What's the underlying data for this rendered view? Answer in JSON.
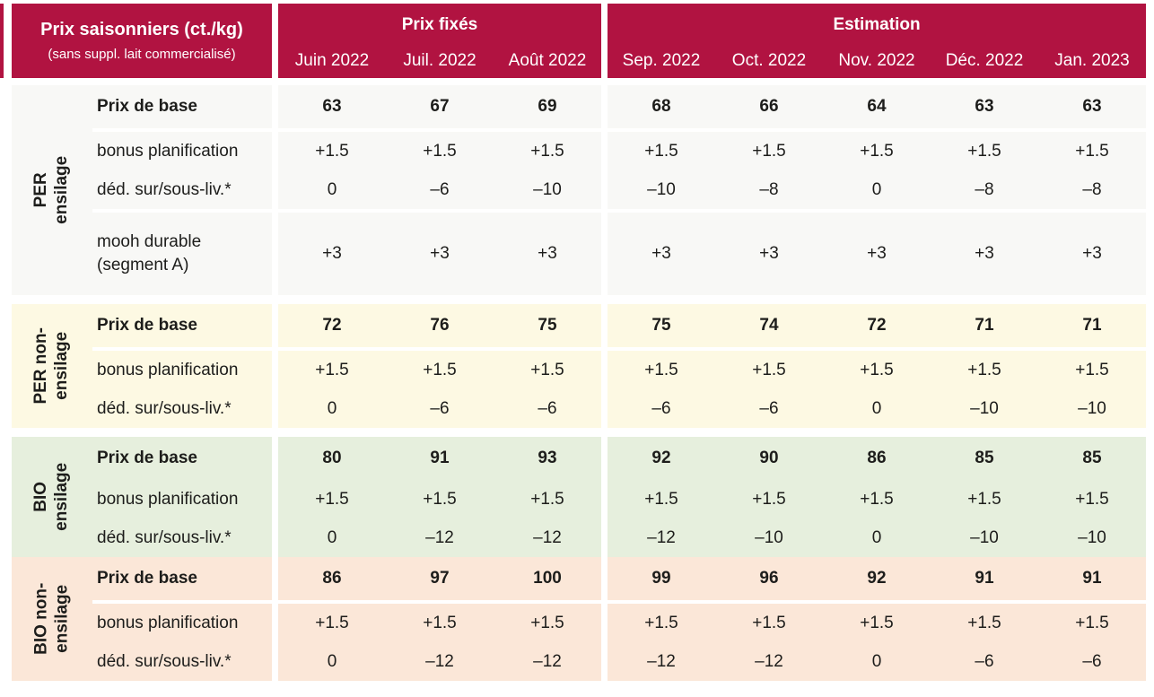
{
  "table": {
    "title": "Prix saisonniers (ct./kg)",
    "subtitle": "(sans suppl. lait commercialisé)",
    "colors": {
      "header_bg": "#b11341",
      "header_text": "#ffffff",
      "body_text": "#1d1d1b"
    },
    "col_groups": [
      {
        "label": "Prix fixés",
        "months": [
          "Juin 2022",
          "Juil. 2022",
          "Août 2022"
        ]
      },
      {
        "label": "Estimation",
        "months": [
          "Sep. 2022",
          "Oct. 2022",
          "Nov. 2022",
          "Déc. 2022",
          "Jan. 2023"
        ]
      }
    ],
    "groups": [
      {
        "id": "per-ensilage",
        "label_lines": [
          "PER",
          "ensilage"
        ],
        "bg": "#f8f8f6",
        "rows": [
          {
            "label": "Prix de base",
            "bold": true,
            "sep_after": true,
            "values": [
              "63",
              "67",
              "69",
              "68",
              "66",
              "64",
              "63",
              "63"
            ]
          },
          {
            "label": "bonus planification",
            "values": [
              "+1.5",
              "+1.5",
              "+1.5",
              "+1.5",
              "+1.5",
              "+1.5",
              "+1.5",
              "+1.5"
            ]
          },
          {
            "label": "déd. sur/sous-liv.*",
            "sep_after": true,
            "values": [
              "0",
              "–6",
              "–10",
              "–10",
              "–8",
              "0",
              "–8",
              "–8"
            ]
          },
          {
            "label": "mooh durable",
            "label2": "(segment A)",
            "tall": true,
            "values": [
              "+3",
              "+3",
              "+3",
              "+3",
              "+3",
              "+3",
              "+3",
              "+3"
            ]
          }
        ]
      },
      {
        "id": "per-non-ensilage",
        "label_lines": [
          "PER non-",
          "ensilage"
        ],
        "bg": "#fdf9e3",
        "rows": [
          {
            "label": "Prix de base",
            "bold": true,
            "sep_after": true,
            "values": [
              "72",
              "76",
              "75",
              "75",
              "74",
              "72",
              "71",
              "71"
            ]
          },
          {
            "label": "bonus planification",
            "values": [
              "+1.5",
              "+1.5",
              "+1.5",
              "+1.5",
              "+1.5",
              "+1.5",
              "+1.5",
              "+1.5"
            ]
          },
          {
            "label": "déd. sur/sous-liv.*",
            "values": [
              "0",
              "–6",
              "–6",
              "–6",
              "–6",
              "0",
              "–10",
              "–10"
            ]
          }
        ]
      },
      {
        "id": "bio-ensilage",
        "label_lines": [
          "BIO",
          "ensilage"
        ],
        "bg": "#e6efdd",
        "rows": [
          {
            "label": "Prix de base",
            "bold": true,
            "values": [
              "80",
              "91",
              "93",
              "92",
              "90",
              "86",
              "85",
              "85"
            ]
          },
          {
            "label": "bonus planification",
            "values": [
              "+1.5",
              "+1.5",
              "+1.5",
              "+1.5",
              "+1.5",
              "+1.5",
              "+1.5",
              "+1.5"
            ]
          },
          {
            "label": "déd. sur/sous-liv.*",
            "values": [
              "0",
              "–12",
              "–12",
              "–12",
              "–10",
              "0",
              "–10",
              "–10"
            ]
          }
        ]
      },
      {
        "id": "bio-non-ensilage",
        "label_lines": [
          "BIO non-",
          "ensilage"
        ],
        "bg": "#fbe7d8",
        "rows": [
          {
            "label": "Prix de base",
            "bold": true,
            "sep_after": true,
            "values": [
              "86",
              "97",
              "100",
              "99",
              "96",
              "92",
              "91",
              "91"
            ]
          },
          {
            "label": "bonus planification",
            "values": [
              "+1.5",
              "+1.5",
              "+1.5",
              "+1.5",
              "+1.5",
              "+1.5",
              "+1.5",
              "+1.5"
            ]
          },
          {
            "label": "déd. sur/sous-liv.*",
            "values": [
              "0",
              "–12",
              "–12",
              "–12",
              "–12",
              "0",
              "–6",
              "–6"
            ]
          }
        ]
      }
    ]
  }
}
